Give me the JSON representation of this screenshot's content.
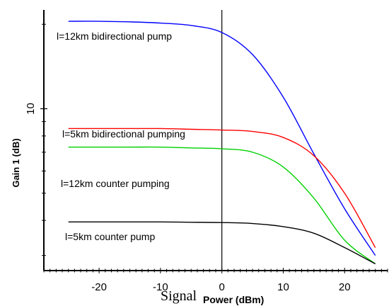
{
  "chart_data": {
    "type": "line",
    "xlabel_part1": "Signal",
    "xlabel_part2": "Power (dBm)",
    "ylabel": "Gain 1 (dB)",
    "xlim": [
      -29,
      27
    ],
    "ylim": [
      2.65,
      22.5
    ],
    "y_scale": "log",
    "x_ticks": [
      -20,
      -10,
      0,
      10,
      20
    ],
    "y_tick_labels": [
      {
        "value": 10,
        "label": "10"
      }
    ],
    "y_minor_ticks": [
      3,
      4,
      5,
      6,
      7,
      8,
      9,
      20
    ],
    "grid": false,
    "series": [
      {
        "name": "l=12km bidirectional pump",
        "color": "#0000ff",
        "x": [
          -25,
          -20,
          -15,
          -10,
          -5,
          0,
          5,
          10,
          15,
          20,
          25
        ],
        "y": [
          20.5,
          20.5,
          20.4,
          20.2,
          19.8,
          18.7,
          15.6,
          11.0,
          6.9,
          4.4,
          3.0
        ]
      },
      {
        "name": "l=5km bidirectional pumping",
        "color": "#ff0000",
        "x": [
          -25,
          -20,
          -15,
          -10,
          -5,
          0,
          5,
          10,
          15,
          20,
          25
        ],
        "y": [
          8.5,
          8.5,
          8.5,
          8.5,
          8.45,
          8.4,
          8.3,
          7.9,
          6.8,
          5.0,
          3.2
        ]
      },
      {
        "name": "l=12km counter pumping",
        "color": "#00d000",
        "x": [
          -25,
          -20,
          -15,
          -10,
          -5,
          0,
          5,
          10,
          15,
          20,
          25
        ],
        "y": [
          7.3,
          7.3,
          7.3,
          7.3,
          7.25,
          7.2,
          7.0,
          6.2,
          4.8,
          3.4,
          2.8
        ]
      },
      {
        "name": "l=5km counter pump",
        "color": "#000000",
        "x": [
          -25,
          -20,
          -15,
          -10,
          -5,
          0,
          5,
          10,
          15,
          20,
          25
        ],
        "y": [
          3.95,
          3.95,
          3.95,
          3.95,
          3.94,
          3.93,
          3.9,
          3.8,
          3.6,
          3.2,
          2.8
        ]
      }
    ]
  }
}
